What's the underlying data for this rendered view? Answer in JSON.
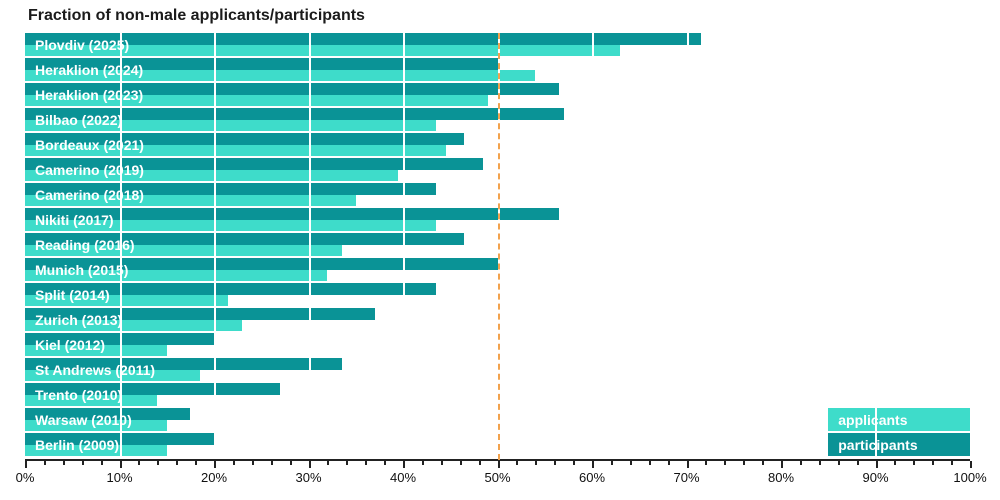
{
  "title": "Fraction of non-male applicants/participants",
  "colors": {
    "applicants": "#3edcca",
    "participants": "#0a9396",
    "reference_line": "#f2a24d",
    "title_text": "#1b1b1b",
    "axis": "#222222",
    "bar_label_text": "#ffffff",
    "background": "#ffffff"
  },
  "chart_data": {
    "type": "bar",
    "orientation": "horizontal",
    "title": "Fraction of non-male applicants/participants",
    "unit": "percent",
    "categories": [
      "Plovdiv (2025)",
      "Heraklion (2024)",
      "Heraklion (2023)",
      "Bilbao (2022)",
      "Bordeaux (2021)",
      "Camerino (2019)",
      "Camerino (2018)",
      "Nikiti (2017)",
      "Reading (2016)",
      "Munich (2015)",
      "Split (2014)",
      "Zurich (2013)",
      "Kiel (2012)",
      "St Andrews (2011)",
      "Trento (2010)",
      "Warsaw (2010)",
      "Berlin (2009)"
    ],
    "series": [
      {
        "name": "participants",
        "color": "#0a9396",
        "row_position": "top",
        "values": [
          71.5,
          50,
          56.5,
          57,
          46.5,
          48.5,
          43.5,
          56.5,
          46.5,
          50,
          43.5,
          37,
          20,
          33.5,
          27,
          17.5,
          20
        ]
      },
      {
        "name": "applicants",
        "color": "#3edcca",
        "row_position": "bottom",
        "values": [
          63,
          54,
          49,
          43.5,
          44.5,
          39.5,
          35,
          43.5,
          33.5,
          32,
          21.5,
          23,
          15,
          18.5,
          14,
          15,
          15
        ]
      }
    ],
    "xlim": [
      0,
      100
    ],
    "x_tick_labels": [
      "0%",
      "10%",
      "20%",
      "30%",
      "40%",
      "50%",
      "60%",
      "70%",
      "80%",
      "90%",
      "100%"
    ],
    "x_major_tick_step": 10,
    "x_minor_tick_step": 2,
    "gridlines": "white vertical lines at 10% steps drawn over bars",
    "reference_line": {
      "x": 50,
      "style": "dashed",
      "color": "#f2a24d"
    },
    "legend": {
      "position": "bottom-right",
      "entries": [
        {
          "label": "applicants",
          "color": "#3edcca"
        },
        {
          "label": "participants",
          "color": "#0a9396"
        }
      ]
    }
  }
}
